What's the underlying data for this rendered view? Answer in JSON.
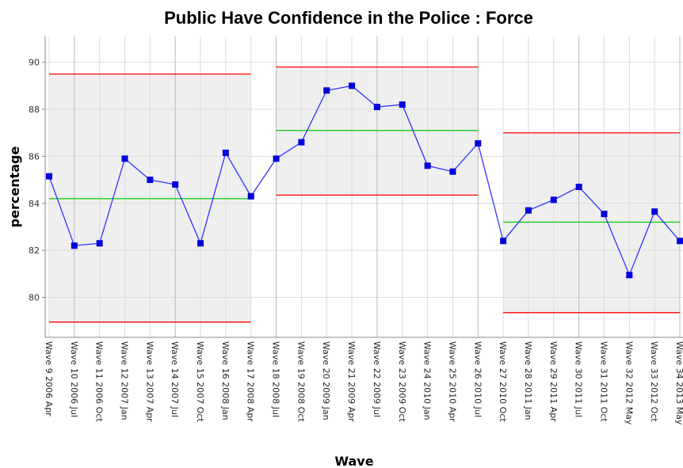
{
  "chart_data": {
    "type": "control",
    "title": "Public Have Confidence in the Police : Force",
    "x_label": "Wave",
    "y_label": "percentage",
    "categories": [
      "Wave 9 2006 Apr",
      "Wave 10 2006 Jul",
      "Wave 11 2006 Oct",
      "Wave 12 2007 Jan",
      "Wave 13 2007 Apr",
      "Wave 14 2007 Jul",
      "Wave 15 2007 Oct",
      "Wave 16 2008 Jan",
      "Wave 17 2008 Apr",
      "Wave 18 2008 Jul",
      "Wave 19 2008 Oct",
      "Wave 20 2009 Jan",
      "Wave 21 2009 Apr",
      "Wave 22 2009 Jul",
      "Wave 23 2009 Oct",
      "Wave 24 2010 Jan",
      "Wave 25 2010 Apr",
      "Wave 26 2010 Jul",
      "Wave 27 2010 Oct",
      "Wave 28 2011 Jan",
      "Wave 29 2011 Apr",
      "Wave 30 2011 Jul",
      "Wave 31 2011 Oct",
      "Wave 32 2012 May",
      "Wave 33 2012 Oct",
      "Wave 34 2013 May"
    ],
    "values": [
      85.15,
      82.2,
      82.3,
      85.9,
      85.0,
      84.8,
      82.3,
      86.15,
      84.3,
      85.9,
      86.6,
      88.8,
      89.0,
      88.1,
      88.2,
      85.6,
      85.35,
      86.55,
      82.4,
      83.7,
      84.15,
      84.7,
      83.55,
      80.95,
      83.65,
      82.4
    ],
    "color": "#3333ff",
    "marker_color": "#0000dd",
    "ucl": [
      89.5,
      89.5,
      89.5,
      89.5,
      89.5,
      89.5,
      89.5,
      89.5,
      89.5,
      89.8,
      89.8,
      89.8,
      89.8,
      89.8,
      89.8,
      89.8,
      89.8,
      89.8,
      87.0,
      87.0,
      87.0,
      87.0,
      87.0,
      87.0,
      87.0,
      87.0
    ],
    "center": [
      84.2,
      84.2,
      84.2,
      84.2,
      84.2,
      84.2,
      84.2,
      84.2,
      84.2,
      87.1,
      87.1,
      87.1,
      87.1,
      87.1,
      87.1,
      87.1,
      87.1,
      87.1,
      83.2,
      83.2,
      83.2,
      83.2,
      83.2,
      83.2,
      83.2,
      83.2
    ],
    "lcl": [
      78.95,
      78.95,
      78.95,
      78.95,
      78.95,
      78.95,
      78.95,
      78.95,
      78.95,
      84.35,
      84.35,
      84.35,
      84.35,
      84.35,
      84.35,
      84.35,
      84.35,
      84.35,
      79.35,
      79.35,
      79.35,
      79.35,
      79.35,
      79.35,
      79.35,
      79.35
    ],
    "limit_color": "#ff0000",
    "center_color": "#00cc00",
    "band_color": "#efeff0",
    "ylim": [
      78.3,
      91.1
    ],
    "yticks": [
      80,
      82,
      84,
      86,
      88,
      90
    ],
    "grid": true
  }
}
